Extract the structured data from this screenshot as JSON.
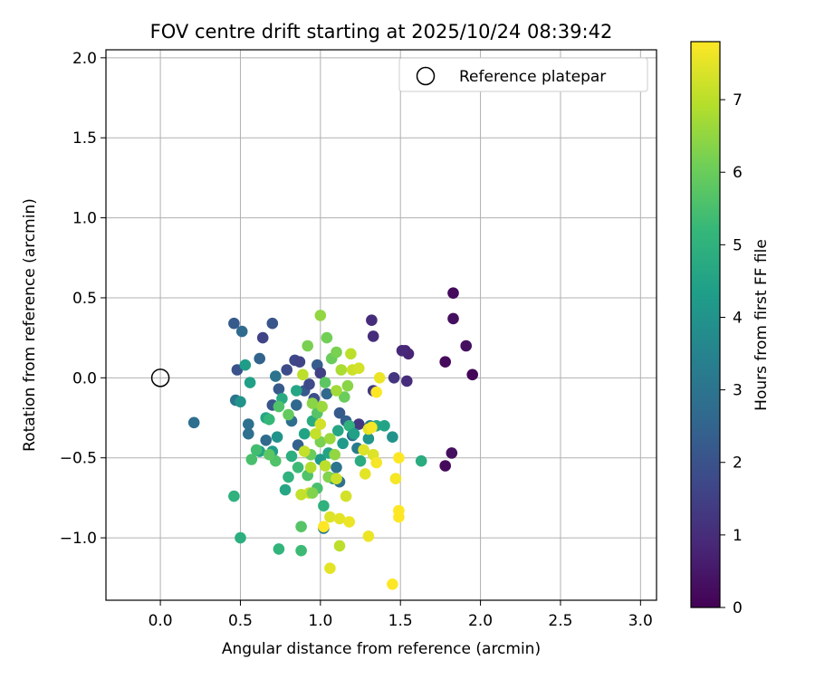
{
  "chart_data": {
    "type": "scatter",
    "title": "FOV centre drift starting at 2025/10/24 08:39:42",
    "xlabel": "Angular distance from reference (arcmin)",
    "ylabel": "Rotation from reference (arcmin)",
    "xlim": [
      -0.34,
      3.1
    ],
    "ylim": [
      -1.39,
      2.05
    ],
    "xticks": [
      0.0,
      0.5,
      1.0,
      1.5,
      2.0,
      2.5,
      3.0
    ],
    "xtick_labels": [
      "0.0",
      "0.5",
      "1.0",
      "1.5",
      "2.0",
      "2.5",
      "3.0"
    ],
    "yticks": [
      -1.0,
      -0.5,
      0.0,
      0.5,
      1.0,
      1.5,
      2.0
    ],
    "ytick_labels": [
      "−1.0",
      "−0.5",
      "0.0",
      "0.5",
      "1.0",
      "1.5",
      "2.0"
    ],
    "grid": true,
    "legend": {
      "position": "top-right",
      "label": "Reference platepar"
    },
    "reference_point": {
      "x": 0.0,
      "y": 0.0
    },
    "colorbar": {
      "label": "Hours from first FF file",
      "range": [
        0,
        7.8
      ],
      "ticks": [
        0,
        1,
        2,
        3,
        4,
        5,
        6,
        7
      ],
      "tick_labels": [
        "0",
        "1",
        "2",
        "3",
        "4",
        "5",
        "6",
        "7"
      ],
      "colormap": [
        "#440154",
        "#482878",
        "#3e4989",
        "#31688e",
        "#26828e",
        "#1f9e89",
        "#35b779",
        "#6ece58",
        "#b5de2b",
        "#fde725"
      ]
    },
    "points": [
      [
        1.83,
        0.53,
        0.2
      ],
      [
        1.83,
        0.37,
        0.3
      ],
      [
        1.91,
        0.2,
        0.3
      ],
      [
        1.78,
        0.1,
        0.2
      ],
      [
        1.95,
        0.02,
        0.1
      ],
      [
        1.82,
        -0.47,
        0.3
      ],
      [
        1.78,
        -0.55,
        0.2
      ],
      [
        1.53,
        0.17,
        0.8
      ],
      [
        1.55,
        0.15,
        0.8
      ],
      [
        1.54,
        -0.02,
        1.0
      ],
      [
        1.46,
        0.0,
        1.2
      ],
      [
        1.32,
        0.36,
        1.0
      ],
      [
        1.33,
        0.26,
        1.0
      ],
      [
        1.33,
        -0.08,
        1.3
      ],
      [
        1.24,
        -0.29,
        1.3
      ],
      [
        1.51,
        0.17,
        0.9
      ],
      [
        0.46,
        0.34,
        2.2
      ],
      [
        0.51,
        0.29,
        2.7
      ],
      [
        0.7,
        0.34,
        2.1
      ],
      [
        0.64,
        0.25,
        1.6
      ],
      [
        0.48,
        0.05,
        2.0
      ],
      [
        0.62,
        0.12,
        2.5
      ],
      [
        0.21,
        -0.28,
        2.8
      ],
      [
        0.47,
        -0.14,
        3.0
      ],
      [
        0.55,
        -0.29,
        2.9
      ],
      [
        0.55,
        -0.35,
        2.9
      ],
      [
        0.66,
        -0.39,
        2.7
      ],
      [
        0.7,
        -0.17,
        2.1
      ],
      [
        0.74,
        -0.07,
        2.2
      ],
      [
        0.79,
        0.05,
        1.8
      ],
      [
        0.84,
        0.11,
        1.7
      ],
      [
        0.87,
        0.1,
        1.6
      ],
      [
        0.9,
        -0.08,
        2.2
      ],
      [
        0.85,
        -0.17,
        2.6
      ],
      [
        0.72,
        0.01,
        3.0
      ],
      [
        0.82,
        -0.27,
        2.8
      ],
      [
        0.86,
        -0.42,
        2.4
      ],
      [
        0.93,
        -0.04,
        1.8
      ],
      [
        0.98,
        0.08,
        2.3
      ],
      [
        1.0,
        0.03,
        1.5
      ],
      [
        0.96,
        -0.13,
        1.9
      ],
      [
        1.04,
        -0.1,
        2.6
      ],
      [
        1.12,
        -0.22,
        2.2
      ],
      [
        1.16,
        -0.27,
        2.4
      ],
      [
        1.2,
        -0.36,
        2.8
      ],
      [
        1.23,
        -0.44,
        3.2
      ],
      [
        1.31,
        -0.3,
        3.3
      ],
      [
        1.1,
        -0.56,
        3.0
      ],
      [
        1.12,
        -0.65,
        2.9
      ],
      [
        1.02,
        -0.94,
        3.2
      ],
      [
        0.5,
        -0.15,
        4.0
      ],
      [
        0.53,
        0.08,
        4.3
      ],
      [
        0.56,
        -0.03,
        4.4
      ],
      [
        0.62,
        -0.46,
        4.5
      ],
      [
        0.66,
        -0.25,
        4.6
      ],
      [
        0.7,
        -0.46,
        4.3
      ],
      [
        0.73,
        -0.37,
        4.0
      ],
      [
        0.76,
        -0.13,
        4.7
      ],
      [
        0.78,
        -0.7,
        4.6
      ],
      [
        0.8,
        -0.62,
        5.0
      ],
      [
        0.82,
        -0.49,
        4.9
      ],
      [
        0.85,
        -0.08,
        4.6
      ],
      [
        0.9,
        -0.35,
        4.5
      ],
      [
        0.95,
        -0.27,
        4.8
      ],
      [
        1.0,
        -0.51,
        4.2
      ],
      [
        1.02,
        -0.8,
        5.0
      ],
      [
        1.05,
        -0.47,
        4.5
      ],
      [
        1.08,
        -0.63,
        4.1
      ],
      [
        1.11,
        -0.33,
        4.6
      ],
      [
        1.14,
        -0.41,
        4.2
      ],
      [
        1.18,
        -0.3,
        5.0
      ],
      [
        1.21,
        -0.35,
        4.4
      ],
      [
        1.25,
        -0.52,
        4.8
      ],
      [
        1.3,
        -0.38,
        4.1
      ],
      [
        1.35,
        -0.3,
        4.7
      ],
      [
        1.4,
        -0.3,
        4.5
      ],
      [
        1.45,
        -0.37,
        4.0
      ],
      [
        1.63,
        -0.52,
        4.8
      ],
      [
        0.46,
        -0.74,
        5.0
      ],
      [
        0.5,
        -1.0,
        4.9
      ],
      [
        0.57,
        -0.51,
        5.5
      ],
      [
        0.6,
        -0.45,
        5.4
      ],
      [
        0.68,
        -0.26,
        5.2
      ],
      [
        0.72,
        -0.52,
        5.6
      ],
      [
        0.74,
        -1.07,
        5.1
      ],
      [
        0.88,
        -1.08,
        5.3
      ],
      [
        0.98,
        -0.69,
        5.5
      ],
      [
        0.68,
        -0.48,
        5.8
      ],
      [
        0.74,
        -0.18,
        5.6
      ],
      [
        0.8,
        -0.23,
        5.9
      ],
      [
        0.88,
        -0.93,
        5.7
      ],
      [
        0.92,
        -0.61,
        5.6
      ],
      [
        0.94,
        -0.48,
        6.0
      ],
      [
        0.98,
        -0.22,
        5.7
      ],
      [
        1.03,
        -0.03,
        5.8
      ],
      [
        1.04,
        0.25,
        6.1
      ],
      [
        1.07,
        0.12,
        6.0
      ],
      [
        1.1,
        0.16,
        6.2
      ],
      [
        1.15,
        -0.12,
        6.0
      ],
      [
        1.17,
        -0.05,
        6.4
      ],
      [
        0.92,
        0.2,
        6.2
      ],
      [
        0.95,
        -0.16,
        6.4
      ],
      [
        1.0,
        -0.4,
        6.2
      ],
      [
        1.05,
        -0.62,
        6.3
      ],
      [
        1.09,
        -0.48,
        6.5
      ],
      [
        1.0,
        0.39,
        6.5
      ],
      [
        1.01,
        -0.18,
        6.6
      ],
      [
        1.06,
        -0.38,
        6.6
      ],
      [
        1.1,
        -0.08,
        6.7
      ],
      [
        1.13,
        0.05,
        6.8
      ],
      [
        1.12,
        -1.05,
        7.0
      ],
      [
        0.89,
        0.02,
        7.0
      ],
      [
        0.93,
        -0.72,
        7.2
      ],
      [
        0.9,
        -0.46,
        7.1
      ],
      [
        0.94,
        -0.56,
        6.9
      ],
      [
        0.97,
        -0.35,
        7.1
      ],
      [
        1.0,
        -0.29,
        7.3
      ],
      [
        1.03,
        -0.55,
        7.0
      ],
      [
        1.06,
        -0.87,
        7.4
      ],
      [
        1.1,
        -0.63,
        7.2
      ],
      [
        1.16,
        -0.74,
        7.3
      ],
      [
        1.19,
        0.15,
        7.0
      ],
      [
        1.2,
        0.05,
        7.2
      ],
      [
        1.24,
        0.06,
        7.3
      ],
      [
        1.27,
        -0.45,
        7.4
      ],
      [
        1.28,
        -0.6,
        7.5
      ],
      [
        1.3,
        -0.32,
        7.5
      ],
      [
        1.33,
        -0.48,
        7.4
      ],
      [
        1.35,
        -0.53,
        7.7
      ],
      [
        1.37,
        0.0,
        7.6
      ],
      [
        1.12,
        -0.88,
        7.5
      ],
      [
        1.18,
        -0.9,
        7.6
      ],
      [
        1.3,
        -0.99,
        7.6
      ],
      [
        1.47,
        -0.63,
        7.7
      ],
      [
        1.49,
        -0.5,
        7.8
      ],
      [
        1.49,
        -0.83,
        7.8
      ],
      [
        1.49,
        -0.87,
        7.8
      ],
      [
        1.45,
        -1.29,
        7.8
      ],
      [
        1.06,
        -1.19,
        7.5
      ],
      [
        1.35,
        -0.09,
        7.8
      ],
      [
        1.32,
        -0.31,
        7.7
      ],
      [
        1.02,
        -0.93,
        7.8
      ],
      [
        0.95,
        -0.72,
        6.3
      ],
      [
        0.86,
        -0.56,
        5.3
      ],
      [
        0.88,
        -0.73,
        7.1
      ]
    ]
  }
}
